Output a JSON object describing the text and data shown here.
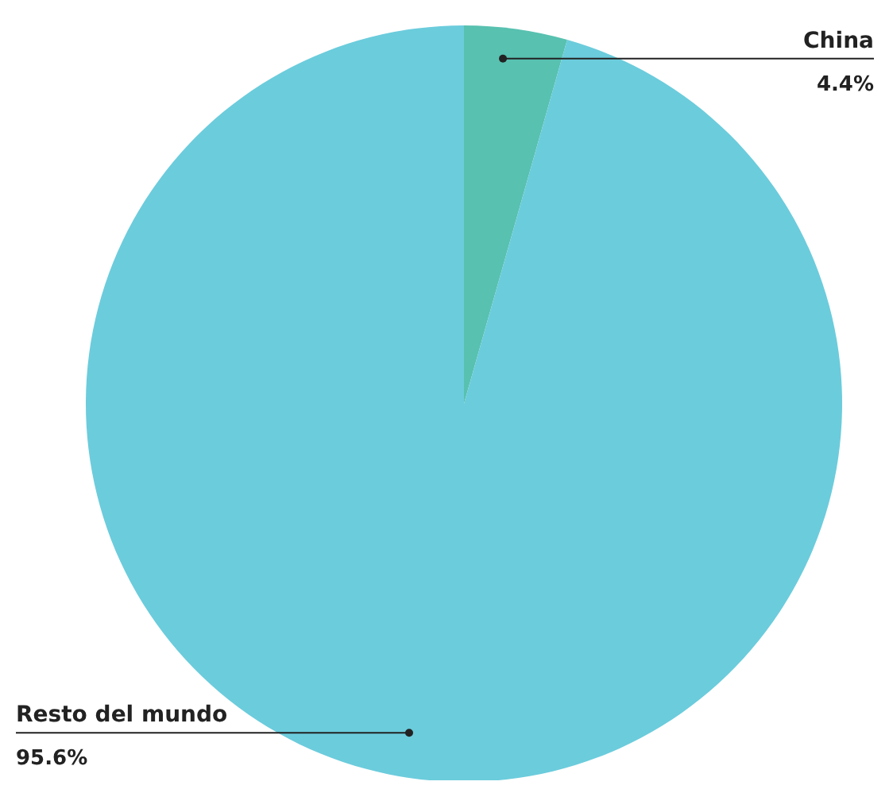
{
  "chart_data": {
    "type": "pie",
    "categories": [
      "China",
      "Resto del mundo"
    ],
    "values": [
      4.4,
      95.6
    ],
    "colors": [
      "#58c1b0",
      "#6bccdc"
    ],
    "value_labels": [
      "4.4%",
      "95.6%"
    ]
  }
}
